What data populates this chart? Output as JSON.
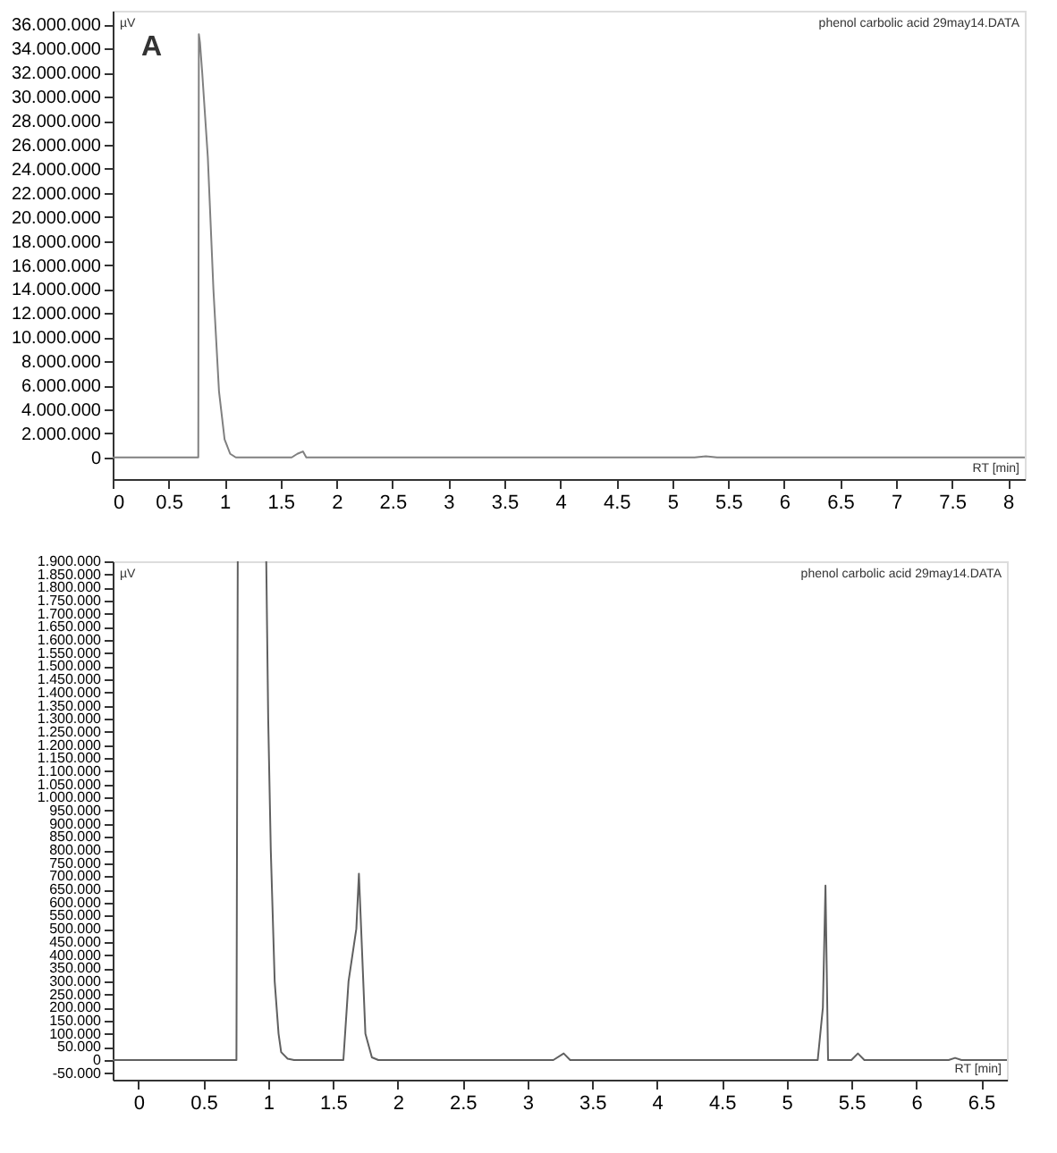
{
  "chart_data": [
    {
      "type": "line",
      "title": "A",
      "ylabel": "µV",
      "xlabel": "RT [min]",
      "annotations": [
        "phenol carbolic acid 29may14.DATA"
      ],
      "x": [
        0,
        0.5,
        0.75,
        0.765,
        0.77,
        0.78,
        0.8,
        0.85,
        0.9,
        0.95,
        1.0,
        1.05,
        1.1,
        1.2,
        1.5,
        1.6,
        1.65,
        1.7,
        1.73,
        1.8,
        3,
        5.2,
        5.3,
        5.4,
        6,
        8.15
      ],
      "series": [
        {
          "color": "#808080",
          "values": [
            0,
            0,
            0,
            0,
            35200000,
            34500000,
            32000000,
            25000000,
            14000000,
            5500000,
            1500000,
            300000,
            0,
            0,
            0,
            0,
            300000,
            500000,
            0,
            0,
            0,
            0,
            100000,
            0,
            0,
            0
          ]
        }
      ],
      "xlim": [
        0,
        8.15
      ],
      "xticks": [
        0,
        0.5,
        1,
        1.5,
        2,
        2.5,
        3,
        3.5,
        4,
        4.5,
        5,
        5.5,
        6,
        6.5,
        7,
        7.5,
        8
      ],
      "ylim": [
        -1800000,
        37150000
      ],
      "yticks": [
        {
          "value": 0,
          "label": "0"
        },
        {
          "value": 2000000,
          "label": "2.000.000"
        },
        {
          "value": 4000000,
          "label": "4.000.000"
        },
        {
          "value": 6000000,
          "label": "6.000.000"
        },
        {
          "value": 8000000,
          "label": "8.000.000"
        },
        {
          "value": 10000000,
          "label": "10.000.000"
        },
        {
          "value": 12000000,
          "label": "12.000.000"
        },
        {
          "value": 14000000,
          "label": "14.000.000"
        },
        {
          "value": 16000000,
          "label": "16.000.000"
        },
        {
          "value": 18000000,
          "label": "18.000.000"
        },
        {
          "value": 20000000,
          "label": "20.000.000"
        },
        {
          "value": 22000000,
          "label": "22.000.000"
        },
        {
          "value": 24000000,
          "label": "24.000.000"
        },
        {
          "value": 26000000,
          "label": "26.000.000"
        },
        {
          "value": 28000000,
          "label": "28.000.000"
        },
        {
          "value": 30000000,
          "label": "30.000.000"
        },
        {
          "value": 32000000,
          "label": "32.000.000"
        },
        {
          "value": 34000000,
          "label": "34.000.000"
        },
        {
          "value": 36000000,
          "label": "36.000.000"
        }
      ],
      "grid": false,
      "marker": "none",
      "line_style": "solid"
    },
    {
      "type": "line",
      "ylabel": "µV",
      "xlabel": "RT [min]",
      "annotations": [
        "phenol carbolic acid 29may14.DATA"
      ],
      "x": [
        -0.2,
        0.5,
        0.755,
        0.765,
        0.775,
        0.985,
        1.0,
        1.02,
        1.05,
        1.08,
        1.1,
        1.15,
        1.2,
        1.58,
        1.62,
        1.68,
        1.7,
        1.75,
        1.8,
        1.85,
        3.2,
        3.28,
        3.33,
        5.24,
        5.28,
        5.3,
        5.32,
        5.5,
        5.55,
        5.6,
        6.25,
        6.3,
        6.35,
        6.7
      ],
      "series": [
        {
          "color": "#606060",
          "values": [
            0,
            0,
            0,
            1900000,
            null,
            1900000,
            1300000,
            800000,
            300000,
            100000,
            30000,
            5000,
            0,
            0,
            300000,
            500000,
            710000,
            100000,
            10000,
            0,
            0,
            25000,
            0,
            0,
            200000,
            665000,
            0,
            0,
            25000,
            0,
            0,
            8000,
            0,
            0
          ]
        }
      ],
      "xlim": [
        -0.2,
        6.7
      ],
      "xticks": [
        0,
        0.5,
        1,
        1.5,
        2,
        2.5,
        3,
        3.5,
        4,
        4.5,
        5,
        5.5,
        6,
        6.5
      ],
      "ylim": [
        -75000,
        1900000
      ],
      "yticks": [
        {
          "value": -50000,
          "label": "-50.000"
        },
        {
          "value": 0,
          "label": "0"
        },
        {
          "value": 50000,
          "label": "50.000"
        },
        {
          "value": 100000,
          "label": "100.000"
        },
        {
          "value": 150000,
          "label": "150.000"
        },
        {
          "value": 200000,
          "label": "200.000"
        },
        {
          "value": 250000,
          "label": "250.000"
        },
        {
          "value": 300000,
          "label": "300.000"
        },
        {
          "value": 350000,
          "label": "350.000"
        },
        {
          "value": 400000,
          "label": "400.000"
        },
        {
          "value": 450000,
          "label": "450.000"
        },
        {
          "value": 500000,
          "label": "500.000"
        },
        {
          "value": 550000,
          "label": "550.000"
        },
        {
          "value": 600000,
          "label": "600.000"
        },
        {
          "value": 650000,
          "label": "650.000"
        },
        {
          "value": 700000,
          "label": "700.000"
        },
        {
          "value": 750000,
          "label": "750.000"
        },
        {
          "value": 800000,
          "label": "800.000"
        },
        {
          "value": 850000,
          "label": "850.000"
        },
        {
          "value": 900000,
          "label": "900.000"
        },
        {
          "value": 950000,
          "label": "950.000"
        },
        {
          "value": 1000000,
          "label": "1.000.000"
        },
        {
          "value": 1050000,
          "label": "1.050.000"
        },
        {
          "value": 1100000,
          "label": "1.100.000"
        },
        {
          "value": 1150000,
          "label": "1.150.000"
        },
        {
          "value": 1200000,
          "label": "1.200.000"
        },
        {
          "value": 1250000,
          "label": "1.250.000"
        },
        {
          "value": 1300000,
          "label": "1.300.000"
        },
        {
          "value": 1350000,
          "label": "1.350.000"
        },
        {
          "value": 1400000,
          "label": "1.400.000"
        },
        {
          "value": 1450000,
          "label": "1.450.000"
        },
        {
          "value": 1500000,
          "label": "1.500.000"
        },
        {
          "value": 1550000,
          "label": "1.550.000"
        },
        {
          "value": 1600000,
          "label": "1.600.000"
        },
        {
          "value": 1650000,
          "label": "1.650.000"
        },
        {
          "value": 1700000,
          "label": "1.700.000"
        },
        {
          "value": 1750000,
          "label": "1.750.000"
        },
        {
          "value": 1800000,
          "label": "1.800.000"
        },
        {
          "value": 1850000,
          "label": "1.850.000"
        },
        {
          "value": 1900000,
          "label": "1.900.000"
        }
      ],
      "grid": false,
      "marker": "none",
      "line_style": "solid"
    }
  ]
}
